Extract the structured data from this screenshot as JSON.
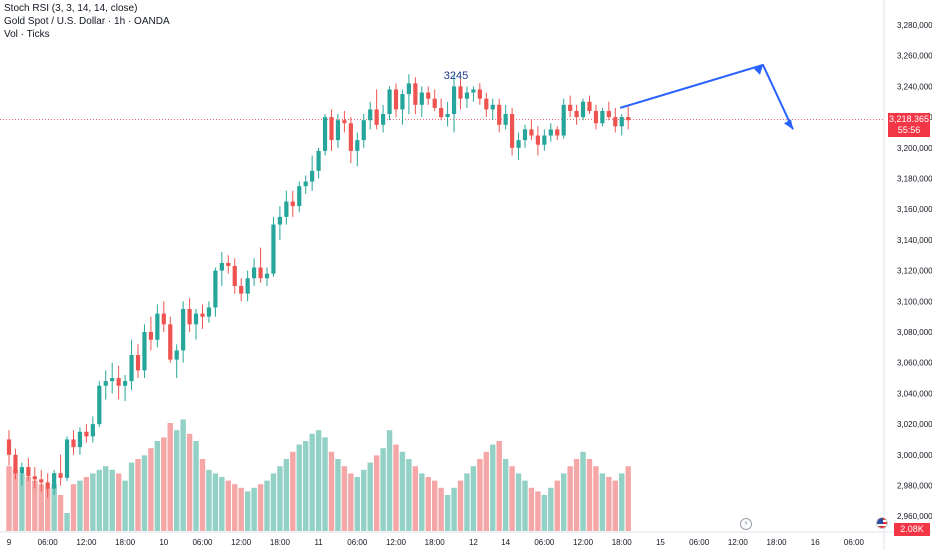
{
  "legend": {
    "indicator": "Stoch RSI (3, 3, 14, 14, close)",
    "symbol": "Gold Spot / U.S. Dollar · 1h · OANDA",
    "volume": "Vol · Ticks"
  },
  "price_badge": {
    "price": "3,218.365",
    "countdown": "55:56"
  },
  "volume_badge": "2.08K",
  "annotation": "3245",
  "colors": {
    "up": "#26a69a",
    "down": "#ef5350",
    "up_volume": "#93d0c6",
    "down_volume": "#f5a6a6",
    "arrow": "#2962ff",
    "price_line": "#f23645"
  },
  "chart_data": {
    "type": "candlestick",
    "symbol": "XAUUSD",
    "interval": "1h",
    "y_axis": {
      "min": 2940,
      "max": 3290,
      "ticks": [
        "3,280,000",
        "3,260,000",
        "3,240,000",
        "3,220,000",
        "3,200,000",
        "3,180,000",
        "3,160,000",
        "3,140,000",
        "3,120,000",
        "3,100,000",
        "3,080,000",
        "3,060,000",
        "3,040,000",
        "3,020,000",
        "3,000,000",
        "2,980,000",
        "2,960,000"
      ],
      "tick_values": [
        3280,
        3260,
        3240,
        3220,
        3200,
        3180,
        3160,
        3140,
        3120,
        3100,
        3080,
        3060,
        3040,
        3020,
        3000,
        2980,
        2960
      ]
    },
    "x_axis": {
      "labels": [
        "9",
        "06:00",
        "12:00",
        "18:00",
        "10",
        "06:00",
        "12:00",
        "18:00",
        "11",
        "06:00",
        "12:00",
        "18:00",
        "12",
        "14",
        "06:00",
        "12:00",
        "18:00",
        "15",
        "06:00",
        "12:00",
        "18:00",
        "16",
        "06:00",
        "12:00",
        "18:00"
      ],
      "label_bars": [
        0,
        6,
        12,
        18,
        24,
        30,
        36,
        42,
        48,
        54,
        60,
        66,
        72,
        77,
        83,
        89,
        95,
        101,
        107,
        113,
        119,
        125,
        131,
        137,
        143
      ]
    },
    "last_price": 3218.365,
    "candles": [
      [
        3010,
        3016,
        2993,
        3000
      ],
      [
        3000,
        3004,
        2984,
        2988
      ],
      [
        2988,
        2995,
        2980,
        2992
      ],
      [
        2992,
        2998,
        2983,
        2986
      ],
      [
        2986,
        2992,
        2978,
        2984
      ],
      [
        2984,
        2990,
        2976,
        2982
      ],
      [
        2982,
        2988,
        2972,
        2978
      ],
      [
        2978,
        2990,
        2974,
        2988
      ],
      [
        2988,
        3000,
        2980,
        2985
      ],
      [
        2985,
        3012,
        2983,
        3010
      ],
      [
        3010,
        3016,
        3000,
        3005
      ],
      [
        3005,
        3018,
        3000,
        3015
      ],
      [
        3015,
        3020,
        3008,
        3012
      ],
      [
        3012,
        3025,
        3008,
        3020
      ],
      [
        3020,
        3048,
        3018,
        3045
      ],
      [
        3045,
        3055,
        3036,
        3048
      ],
      [
        3048,
        3060,
        3040,
        3050
      ],
      [
        3050,
        3058,
        3036,
        3045
      ],
      [
        3045,
        3052,
        3035,
        3048
      ],
      [
        3048,
        3075,
        3042,
        3065
      ],
      [
        3065,
        3072,
        3050,
        3055
      ],
      [
        3055,
        3085,
        3050,
        3080
      ],
      [
        3080,
        3090,
        3068,
        3075
      ],
      [
        3075,
        3098,
        3070,
        3092
      ],
      [
        3092,
        3100,
        3080,
        3085
      ],
      [
        3085,
        3090,
        3060,
        3062
      ],
      [
        3062,
        3072,
        3050,
        3068
      ],
      [
        3068,
        3100,
        3060,
        3095
      ],
      [
        3095,
        3102,
        3080,
        3085
      ],
      [
        3085,
        3095,
        3075,
        3092
      ],
      [
        3092,
        3098,
        3082,
        3090
      ],
      [
        3090,
        3100,
        3086,
        3096
      ],
      [
        3096,
        3122,
        3090,
        3120
      ],
      [
        3120,
        3132,
        3110,
        3125
      ],
      [
        3125,
        3130,
        3118,
        3123
      ],
      [
        3123,
        3128,
        3105,
        3110
      ],
      [
        3110,
        3115,
        3100,
        3105
      ],
      [
        3105,
        3120,
        3100,
        3115
      ],
      [
        3115,
        3128,
        3110,
        3122
      ],
      [
        3122,
        3135,
        3112,
        3115
      ],
      [
        3115,
        3122,
        3110,
        3118
      ],
      [
        3118,
        3155,
        3116,
        3150
      ],
      [
        3150,
        3162,
        3140,
        3155
      ],
      [
        3155,
        3172,
        3150,
        3165
      ],
      [
        3165,
        3172,
        3155,
        3162
      ],
      [
        3162,
        3178,
        3158,
        3175
      ],
      [
        3175,
        3182,
        3170,
        3178
      ],
      [
        3178,
        3195,
        3172,
        3185
      ],
      [
        3185,
        3200,
        3180,
        3198
      ],
      [
        3198,
        3222,
        3195,
        3220
      ],
      [
        3220,
        3225,
        3198,
        3205
      ],
      [
        3205,
        3222,
        3200,
        3218
      ],
      [
        3218,
        3224,
        3210,
        3216
      ],
      [
        3216,
        3220,
        3190,
        3198
      ],
      [
        3198,
        3210,
        3188,
        3205
      ],
      [
        3205,
        3222,
        3200,
        3218
      ],
      [
        3218,
        3230,
        3212,
        3225
      ],
      [
        3225,
        3238,
        3212,
        3215
      ],
      [
        3215,
        3228,
        3210,
        3222
      ],
      [
        3222,
        3240,
        3218,
        3238
      ],
      [
        3238,
        3242,
        3220,
        3225
      ],
      [
        3225,
        3238,
        3215,
        3235
      ],
      [
        3235,
        3248,
        3222,
        3242
      ],
      [
        3242,
        3246,
        3222,
        3228
      ],
      [
        3228,
        3240,
        3220,
        3236
      ],
      [
        3236,
        3240,
        3228,
        3232
      ],
      [
        3232,
        3238,
        3224,
        3226
      ],
      [
        3226,
        3232,
        3218,
        3220
      ],
      [
        3220,
        3230,
        3214,
        3222
      ],
      [
        3222,
        3248,
        3210,
        3240
      ],
      [
        3240,
        3245,
        3225,
        3232
      ],
      [
        3232,
        3240,
        3226,
        3236
      ],
      [
        3236,
        3240,
        3230,
        3238
      ],
      [
        3238,
        3242,
        3228,
        3232
      ],
      [
        3232,
        3236,
        3220,
        3225
      ],
      [
        3225,
        3232,
        3218,
        3228
      ],
      [
        3228,
        3232,
        3210,
        3215
      ],
      [
        3215,
        3228,
        3212,
        3222
      ],
      [
        3222,
        3226,
        3195,
        3200
      ],
      [
        3200,
        3210,
        3192,
        3205
      ],
      [
        3205,
        3215,
        3200,
        3212
      ],
      [
        3212,
        3218,
        3205,
        3208
      ],
      [
        3208,
        3214,
        3195,
        3202
      ],
      [
        3202,
        3212,
        3198,
        3208
      ],
      [
        3208,
        3216,
        3204,
        3212
      ],
      [
        3212,
        3214,
        3205,
        3208
      ],
      [
        3208,
        3232,
        3206,
        3228
      ],
      [
        3228,
        3234,
        3220,
        3224
      ],
      [
        3224,
        3228,
        3215,
        3220
      ],
      [
        3220,
        3232,
        3218,
        3230
      ],
      [
        3230,
        3234,
        3222,
        3224
      ],
      [
        3224,
        3228,
        3212,
        3216
      ],
      [
        3216,
        3226,
        3214,
        3224
      ],
      [
        3224,
        3230,
        3218,
        3220
      ],
      [
        3220,
        3226,
        3210,
        3214
      ],
      [
        3214,
        3222,
        3208,
        3220
      ],
      [
        3220,
        3228,
        3212,
        3218
      ]
    ],
    "volumes": [
      18,
      17,
      16,
      15,
      14,
      13,
      12,
      13,
      10,
      5,
      13,
      14,
      15,
      16,
      17,
      18,
      17,
      16,
      14,
      19,
      20,
      21,
      23,
      25,
      26,
      30,
      28,
      31,
      27,
      25,
      20,
      17,
      16,
      15,
      14,
      13,
      12,
      11,
      12,
      13,
      14,
      16,
      18,
      20,
      22,
      24,
      25,
      27,
      28,
      26,
      22,
      20,
      18,
      16,
      15,
      17,
      19,
      21,
      23,
      28,
      24,
      22,
      20,
      18,
      16,
      15,
      14,
      12,
      10,
      12,
      14,
      16,
      18,
      20,
      22,
      24,
      25,
      20,
      18,
      16,
      14,
      12,
      11,
      10,
      12,
      14,
      16,
      18,
      20,
      22,
      20,
      18,
      16,
      15,
      14,
      16,
      18
    ]
  }
}
